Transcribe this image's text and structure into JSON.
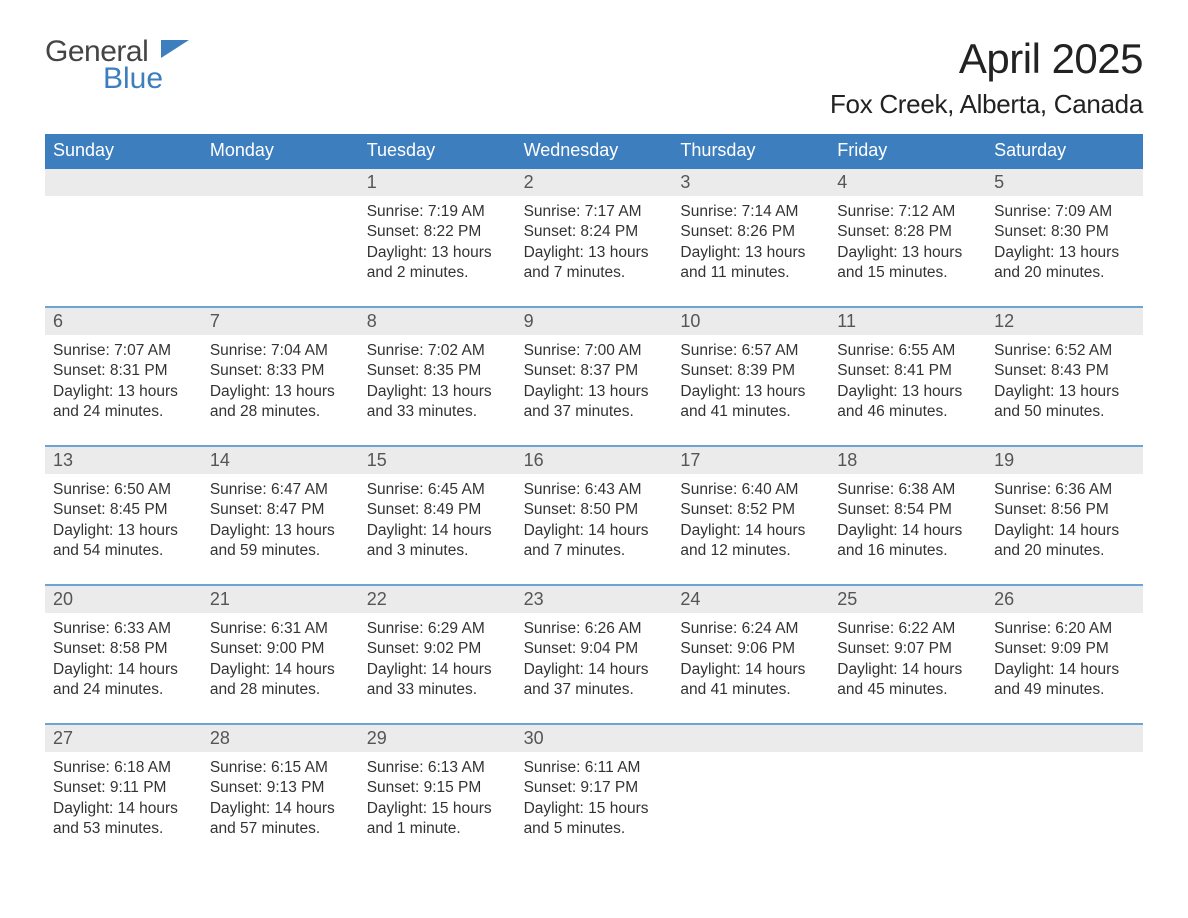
{
  "logo": {
    "word1": "General",
    "word2": "Blue"
  },
  "title": "April 2025",
  "location": "Fox Creek, Alberta, Canada",
  "colors": {
    "header_bg": "#3d7ebf",
    "header_text": "#ffffff",
    "daynum_bg": "#ebebeb",
    "text": "#333333",
    "accent_line": "#6da4d4",
    "logo_dark": "#444444",
    "logo_blue": "#3d7ebf",
    "bg": "#ffffff"
  },
  "fonts": {
    "title_size_pt": 42,
    "location_size_pt": 26,
    "dayheader_size_pt": 18,
    "daynum_size_pt": 18,
    "body_size_pt": 15.5
  },
  "day_names": [
    "Sunday",
    "Monday",
    "Tuesday",
    "Wednesday",
    "Thursday",
    "Friday",
    "Saturday"
  ],
  "weeks": [
    [
      {
        "num": "",
        "sunrise": "",
        "sunset": "",
        "daylight": ""
      },
      {
        "num": "",
        "sunrise": "",
        "sunset": "",
        "daylight": ""
      },
      {
        "num": "1",
        "sunrise": "Sunrise: 7:19 AM",
        "sunset": "Sunset: 8:22 PM",
        "daylight": "Daylight: 13 hours and 2 minutes."
      },
      {
        "num": "2",
        "sunrise": "Sunrise: 7:17 AM",
        "sunset": "Sunset: 8:24 PM",
        "daylight": "Daylight: 13 hours and 7 minutes."
      },
      {
        "num": "3",
        "sunrise": "Sunrise: 7:14 AM",
        "sunset": "Sunset: 8:26 PM",
        "daylight": "Daylight: 13 hours and 11 minutes."
      },
      {
        "num": "4",
        "sunrise": "Sunrise: 7:12 AM",
        "sunset": "Sunset: 8:28 PM",
        "daylight": "Daylight: 13 hours and 15 minutes."
      },
      {
        "num": "5",
        "sunrise": "Sunrise: 7:09 AM",
        "sunset": "Sunset: 8:30 PM",
        "daylight": "Daylight: 13 hours and 20 minutes."
      }
    ],
    [
      {
        "num": "6",
        "sunrise": "Sunrise: 7:07 AM",
        "sunset": "Sunset: 8:31 PM",
        "daylight": "Daylight: 13 hours and 24 minutes."
      },
      {
        "num": "7",
        "sunrise": "Sunrise: 7:04 AM",
        "sunset": "Sunset: 8:33 PM",
        "daylight": "Daylight: 13 hours and 28 minutes."
      },
      {
        "num": "8",
        "sunrise": "Sunrise: 7:02 AM",
        "sunset": "Sunset: 8:35 PM",
        "daylight": "Daylight: 13 hours and 33 minutes."
      },
      {
        "num": "9",
        "sunrise": "Sunrise: 7:00 AM",
        "sunset": "Sunset: 8:37 PM",
        "daylight": "Daylight: 13 hours and 37 minutes."
      },
      {
        "num": "10",
        "sunrise": "Sunrise: 6:57 AM",
        "sunset": "Sunset: 8:39 PM",
        "daylight": "Daylight: 13 hours and 41 minutes."
      },
      {
        "num": "11",
        "sunrise": "Sunrise: 6:55 AM",
        "sunset": "Sunset: 8:41 PM",
        "daylight": "Daylight: 13 hours and 46 minutes."
      },
      {
        "num": "12",
        "sunrise": "Sunrise: 6:52 AM",
        "sunset": "Sunset: 8:43 PM",
        "daylight": "Daylight: 13 hours and 50 minutes."
      }
    ],
    [
      {
        "num": "13",
        "sunrise": "Sunrise: 6:50 AM",
        "sunset": "Sunset: 8:45 PM",
        "daylight": "Daylight: 13 hours and 54 minutes."
      },
      {
        "num": "14",
        "sunrise": "Sunrise: 6:47 AM",
        "sunset": "Sunset: 8:47 PM",
        "daylight": "Daylight: 13 hours and 59 minutes."
      },
      {
        "num": "15",
        "sunrise": "Sunrise: 6:45 AM",
        "sunset": "Sunset: 8:49 PM",
        "daylight": "Daylight: 14 hours and 3 minutes."
      },
      {
        "num": "16",
        "sunrise": "Sunrise: 6:43 AM",
        "sunset": "Sunset: 8:50 PM",
        "daylight": "Daylight: 14 hours and 7 minutes."
      },
      {
        "num": "17",
        "sunrise": "Sunrise: 6:40 AM",
        "sunset": "Sunset: 8:52 PM",
        "daylight": "Daylight: 14 hours and 12 minutes."
      },
      {
        "num": "18",
        "sunrise": "Sunrise: 6:38 AM",
        "sunset": "Sunset: 8:54 PM",
        "daylight": "Daylight: 14 hours and 16 minutes."
      },
      {
        "num": "19",
        "sunrise": "Sunrise: 6:36 AM",
        "sunset": "Sunset: 8:56 PM",
        "daylight": "Daylight: 14 hours and 20 minutes."
      }
    ],
    [
      {
        "num": "20",
        "sunrise": "Sunrise: 6:33 AM",
        "sunset": "Sunset: 8:58 PM",
        "daylight": "Daylight: 14 hours and 24 minutes."
      },
      {
        "num": "21",
        "sunrise": "Sunrise: 6:31 AM",
        "sunset": "Sunset: 9:00 PM",
        "daylight": "Daylight: 14 hours and 28 minutes."
      },
      {
        "num": "22",
        "sunrise": "Sunrise: 6:29 AM",
        "sunset": "Sunset: 9:02 PM",
        "daylight": "Daylight: 14 hours and 33 minutes."
      },
      {
        "num": "23",
        "sunrise": "Sunrise: 6:26 AM",
        "sunset": "Sunset: 9:04 PM",
        "daylight": "Daylight: 14 hours and 37 minutes."
      },
      {
        "num": "24",
        "sunrise": "Sunrise: 6:24 AM",
        "sunset": "Sunset: 9:06 PM",
        "daylight": "Daylight: 14 hours and 41 minutes."
      },
      {
        "num": "25",
        "sunrise": "Sunrise: 6:22 AM",
        "sunset": "Sunset: 9:07 PM",
        "daylight": "Daylight: 14 hours and 45 minutes."
      },
      {
        "num": "26",
        "sunrise": "Sunrise: 6:20 AM",
        "sunset": "Sunset: 9:09 PM",
        "daylight": "Daylight: 14 hours and 49 minutes."
      }
    ],
    [
      {
        "num": "27",
        "sunrise": "Sunrise: 6:18 AM",
        "sunset": "Sunset: 9:11 PM",
        "daylight": "Daylight: 14 hours and 53 minutes."
      },
      {
        "num": "28",
        "sunrise": "Sunrise: 6:15 AM",
        "sunset": "Sunset: 9:13 PM",
        "daylight": "Daylight: 14 hours and 57 minutes."
      },
      {
        "num": "29",
        "sunrise": "Sunrise: 6:13 AM",
        "sunset": "Sunset: 9:15 PM",
        "daylight": "Daylight: 15 hours and 1 minute."
      },
      {
        "num": "30",
        "sunrise": "Sunrise: 6:11 AM",
        "sunset": "Sunset: 9:17 PM",
        "daylight": "Daylight: 15 hours and 5 minutes."
      },
      {
        "num": "",
        "sunrise": "",
        "sunset": "",
        "daylight": ""
      },
      {
        "num": "",
        "sunrise": "",
        "sunset": "",
        "daylight": ""
      },
      {
        "num": "",
        "sunrise": "",
        "sunset": "",
        "daylight": ""
      }
    ]
  ]
}
